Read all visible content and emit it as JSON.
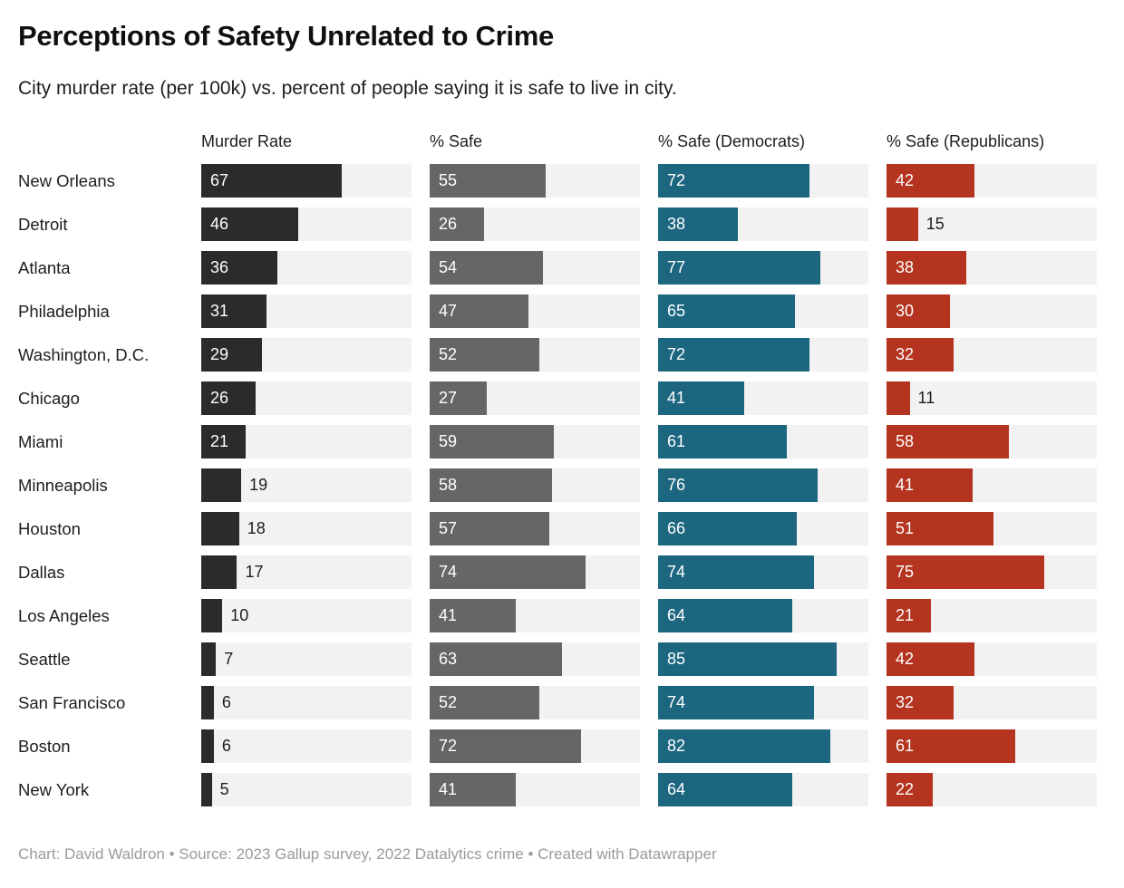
{
  "header": {
    "title": "Perceptions of Safety Unrelated to Crime",
    "subtitle": "City murder rate (per 100k) vs. percent of people saying it is safe to live in city."
  },
  "footer": {
    "text": "Chart: David Waldron • Source: 2023 Gallup survey, 2022 Datalytics crime • Created with Datawrapper"
  },
  "chart_data": {
    "type": "bar",
    "orientation": "horizontal",
    "value_range": [
      0,
      100
    ],
    "grid": false,
    "legend_position": "column-headers",
    "categories": [
      "New Orleans",
      "Detroit",
      "Atlanta",
      "Philadelphia",
      "Washington, D.C.",
      "Chicago",
      "Miami",
      "Minneapolis",
      "Houston",
      "Dallas",
      "Los Angeles",
      "Seattle",
      "San Francisco",
      "Boston",
      "New York"
    ],
    "series": [
      {
        "name": "Murder Rate",
        "color": "#2b2b2b",
        "values": [
          67,
          46,
          36,
          31,
          29,
          26,
          21,
          19,
          18,
          17,
          10,
          7,
          6,
          6,
          5
        ]
      },
      {
        "name": "% Safe",
        "color": "#666666",
        "values": [
          55,
          26,
          54,
          47,
          52,
          27,
          59,
          58,
          57,
          74,
          41,
          63,
          52,
          72,
          41
        ]
      },
      {
        "name": "% Safe (Democrats)",
        "color": "#1c6680",
        "values": [
          72,
          38,
          77,
          65,
          72,
          41,
          61,
          76,
          66,
          74,
          64,
          85,
          74,
          82,
          64
        ]
      },
      {
        "name": "% Safe (Republicans)",
        "color": "#b4341f",
        "values": [
          42,
          15,
          38,
          30,
          32,
          11,
          58,
          41,
          51,
          75,
          21,
          42,
          32,
          61,
          22
        ]
      }
    ],
    "track_color": "#f2f2f2",
    "label_inside_color": "#ffffff",
    "label_outside_color": "#1d1d1d",
    "label_inside_min_value": 20
  }
}
